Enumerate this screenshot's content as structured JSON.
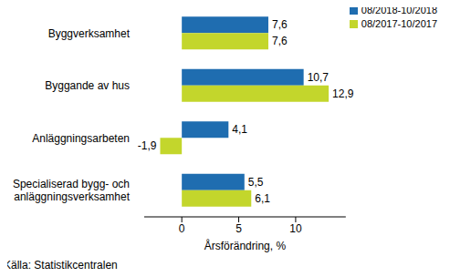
{
  "chart_data": {
    "type": "bar",
    "orientation": "horizontal",
    "categories": [
      "Byggverksamhet",
      "Byggande av hus",
      "Anläggningsarbeten",
      "Specialiserad bygg- och anläggningsverksamhet"
    ],
    "series": [
      {
        "name": "08/2018-10/2018",
        "color": "#1f6db0",
        "values": [
          7.6,
          10.7,
          4.1,
          5.5
        ],
        "value_labels": [
          "7,6",
          "10,7",
          "4,1",
          "5,5"
        ]
      },
      {
        "name": "08/2017-10/2017",
        "color": "#c3d62c",
        "values": [
          7.6,
          12.9,
          -1.9,
          6.1
        ],
        "value_labels": [
          "7,6",
          "12,9",
          "-1,9",
          "6,1"
        ]
      }
    ],
    "x_label": "Årsförändring, %",
    "xlim": [
      -3.3,
      14.4
    ],
    "xticks": [
      0,
      5,
      10
    ],
    "grid": false,
    "legend": "upper right",
    "data_labels": true,
    "source": "Källa: Statistikcentralen"
  }
}
